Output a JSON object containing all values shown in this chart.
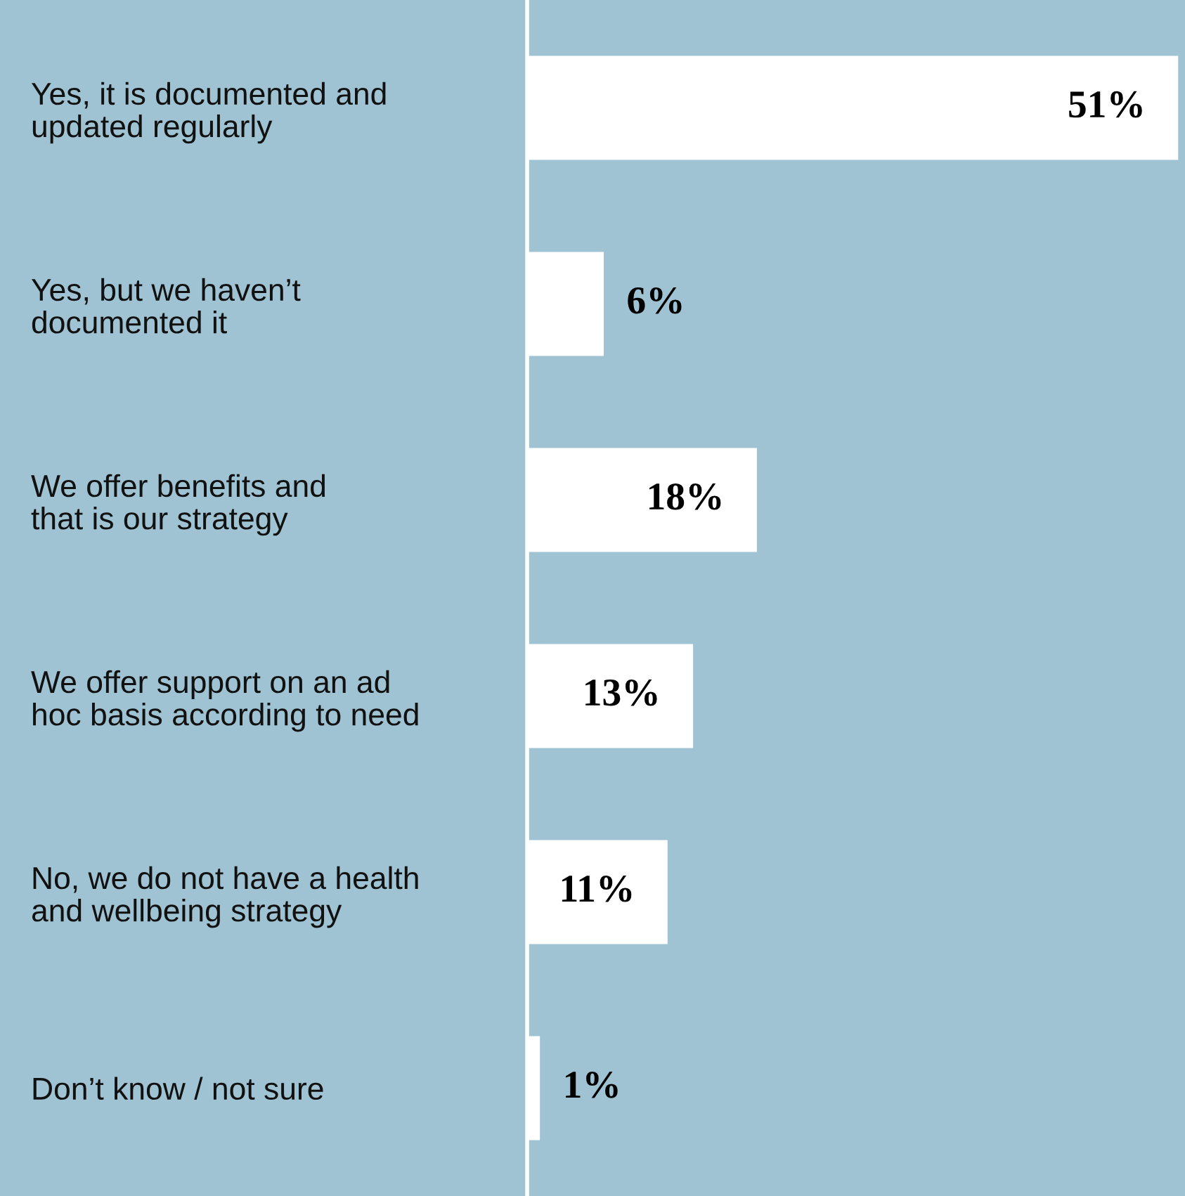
{
  "chart_data": {
    "type": "bar",
    "orientation": "horizontal",
    "categories": [
      "Yes, it is documented and\nupdated regularly",
      "Yes, but we haven’t\ndocumented it",
      "We offer benefits and\nthat is our strategy",
      "We offer support on an ad\nhoc basis according to need",
      "No, we do not have a health\nand wellbeing strategy",
      "Don’t know / not sure"
    ],
    "values": [
      51,
      6,
      18,
      13,
      11,
      1
    ],
    "color": "#ffffff",
    "value_labels": [
      "51%",
      "6%",
      "18%",
      "13%",
      "11%",
      "1%"
    ],
    "grid": false,
    "legend": false
  }
}
